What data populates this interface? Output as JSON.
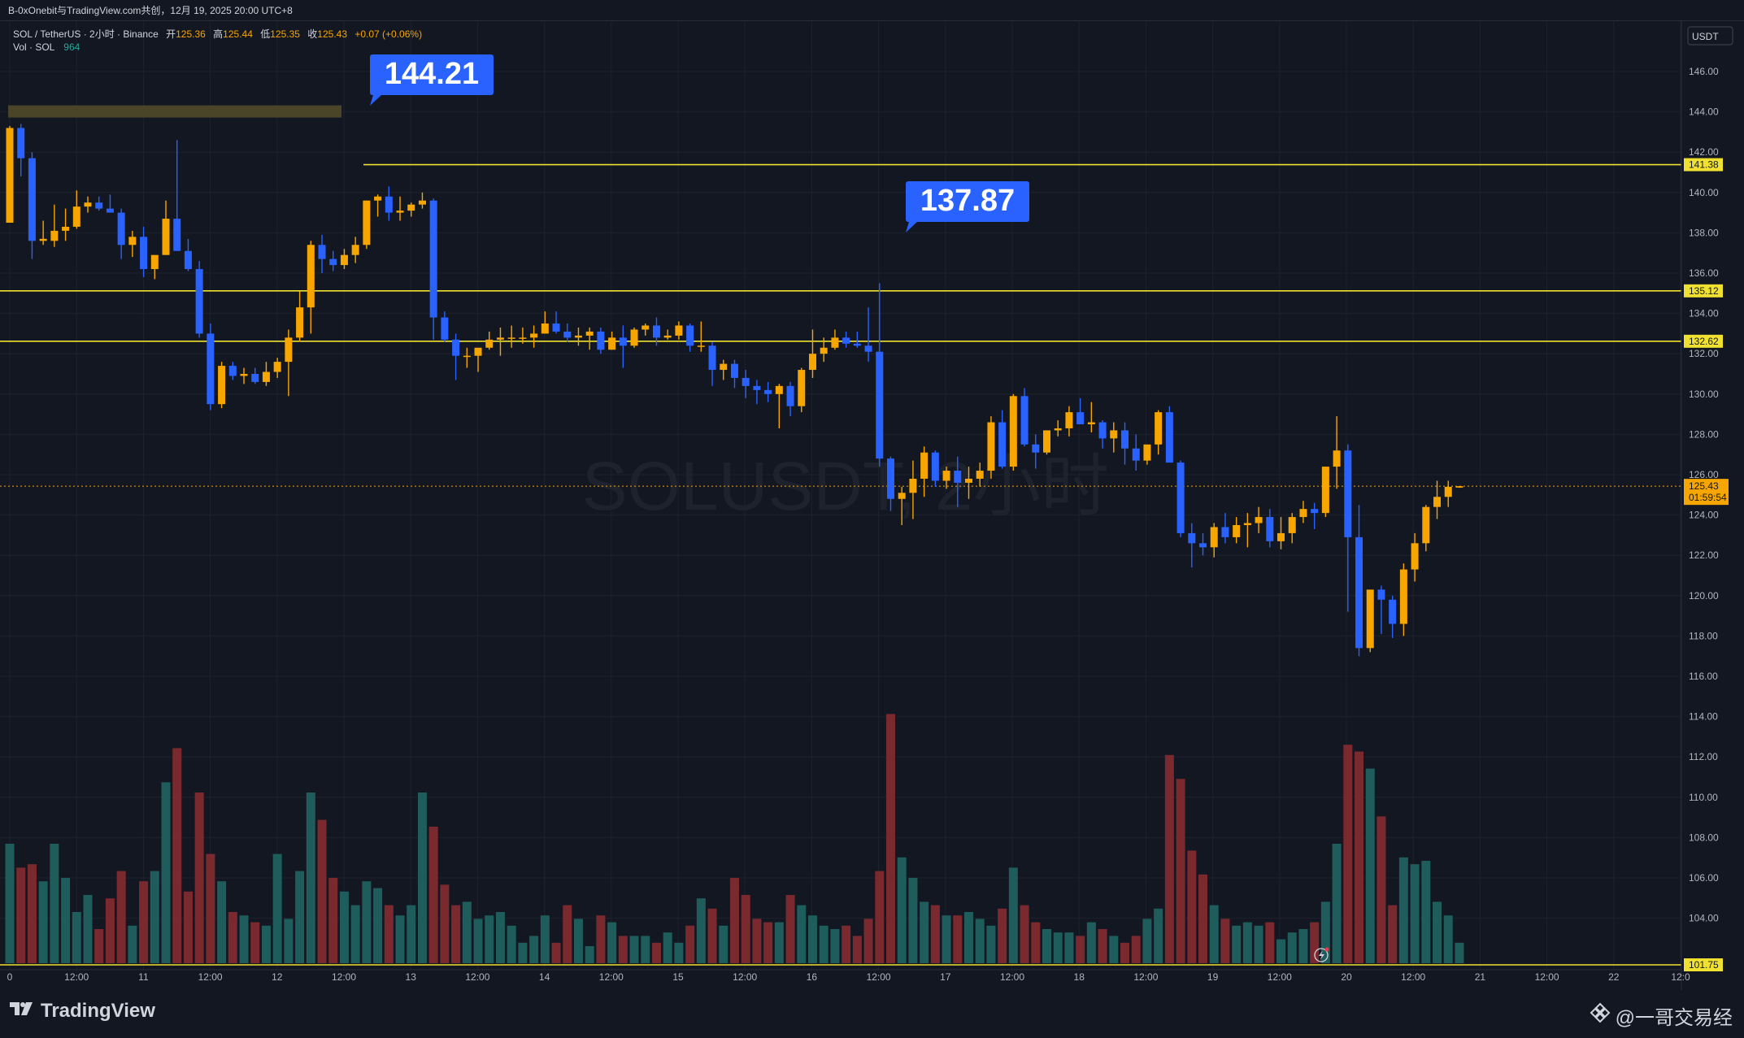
{
  "header": {
    "share_line": "B-0xOnebit与TradingView.com共创，12月 19, 2025 20:00 UTC+8",
    "symbol_line": "SOL / TetherUS · 2小时 · Binance",
    "ohlc": {
      "open_label": "开",
      "open": "125.36",
      "high_label": "高",
      "high": "125.44",
      "low_label": "低",
      "low": "125.35",
      "close_label": "收",
      "close": "125.43",
      "change": "+0.07 (+0.06%)"
    },
    "vol_label": "Vol · SOL",
    "vol_value": "964"
  },
  "currency_button": "USDT",
  "watermark": "SOLUSDT, 2小时",
  "footer": {
    "brand": "TradingView",
    "author": "@一哥交易经"
  },
  "colors": {
    "up": "#f7a600",
    "down": "#2962ff",
    "up_vol": "#1f5c5c",
    "down_vol": "#7a2a2e",
    "level": "#f0e130",
    "bg": "#131722",
    "grid": "#1e222d",
    "callout": "#2962ff"
  },
  "chart_data": {
    "type": "candlestick",
    "interval": "2h",
    "ylim": [
      101.75,
      147.6
    ],
    "y_ticks": [
      "146.00",
      "144.00",
      "142.00",
      "140.00",
      "138.00",
      "136.00",
      "134.00",
      "132.00",
      "130.00",
      "128.00",
      "126.00",
      "124.00",
      "122.00",
      "120.00",
      "118.00",
      "116.00",
      "114.00",
      "112.00",
      "110.00",
      "108.00",
      "106.00",
      "104.00"
    ],
    "x_ticks": [
      "0",
      "12:00",
      "11",
      "12:00",
      "12",
      "12:00",
      "13",
      "12:00",
      "14",
      "12:00",
      "15",
      "12:00",
      "16",
      "12:00",
      "17",
      "12:00",
      "18",
      "12:00",
      "19",
      "12:00",
      "20",
      "12:00",
      "21",
      "12:00",
      "22",
      "12:0"
    ],
    "price_labels": {
      "level_1": "141.38",
      "level_2": "135.12",
      "level_3": "132.62",
      "last_price": "125.43",
      "countdown": "01:59:54",
      "bottom": "101.75"
    },
    "horizontal_levels": [
      141.38,
      135.12,
      132.62
    ],
    "callouts": [
      {
        "text": "144.21",
        "value": 144.21
      },
      {
        "text": "137.87",
        "value": 137.87
      }
    ],
    "candles": [
      [
        138.5,
        143.3,
        138.5,
        143.2,
        35
      ],
      [
        143.2,
        143.4,
        140.8,
        141.7,
        28
      ],
      [
        141.7,
        142.0,
        136.7,
        137.6,
        29
      ],
      [
        137.6,
        138.6,
        137.4,
        137.7,
        24
      ],
      [
        137.6,
        139.4,
        137.3,
        138.1,
        35
      ],
      [
        138.1,
        139.2,
        137.6,
        138.3,
        25
      ],
      [
        138.3,
        140.1,
        138.2,
        139.3,
        15
      ],
      [
        139.3,
        139.8,
        139.0,
        139.5,
        20
      ],
      [
        139.5,
        139.8,
        139.1,
        139.2,
        10
      ],
      [
        139.2,
        139.9,
        139.0,
        139.0,
        19
      ],
      [
        139.0,
        139.2,
        136.7,
        137.4,
        27
      ],
      [
        137.4,
        138.1,
        136.8,
        137.8,
        11
      ],
      [
        137.8,
        138.3,
        135.8,
        136.2,
        24
      ],
      [
        136.2,
        136.8,
        135.7,
        136.9,
        27
      ],
      [
        136.9,
        139.6,
        136.9,
        138.7,
        53
      ],
      [
        138.7,
        142.6,
        137.1,
        137.1,
        63
      ],
      [
        137.1,
        137.7,
        136.1,
        136.2,
        21
      ],
      [
        136.2,
        136.6,
        132.8,
        133.0,
        50
      ],
      [
        133.0,
        133.5,
        129.2,
        129.5,
        32
      ],
      [
        129.5,
        131.6,
        129.3,
        131.4,
        24
      ],
      [
        131.4,
        131.6,
        130.7,
        130.9,
        15
      ],
      [
        130.9,
        131.3,
        130.5,
        131.0,
        14
      ],
      [
        131.0,
        131.3,
        130.5,
        130.6,
        12
      ],
      [
        130.6,
        131.6,
        130.4,
        131.1,
        11
      ],
      [
        131.1,
        131.8,
        130.8,
        131.6,
        32
      ],
      [
        131.6,
        133.2,
        129.9,
        132.8,
        13
      ],
      [
        132.8,
        135.1,
        132.6,
        134.3,
        27
      ],
      [
        134.3,
        137.6,
        133.0,
        137.4,
        50
      ],
      [
        137.4,
        137.9,
        136.0,
        136.7,
        42
      ],
      [
        136.7,
        137.1,
        136.1,
        136.4,
        25
      ],
      [
        136.4,
        137.2,
        136.2,
        136.9,
        21
      ],
      [
        136.9,
        137.8,
        136.5,
        137.4,
        17
      ],
      [
        137.4,
        139.6,
        137.2,
        139.6,
        24
      ],
      [
        139.6,
        139.9,
        138.8,
        139.8,
        22
      ],
      [
        139.8,
        140.3,
        138.6,
        139.0,
        17
      ],
      [
        139.0,
        139.8,
        138.6,
        139.1,
        14
      ],
      [
        139.1,
        139.5,
        138.8,
        139.4,
        17
      ],
      [
        139.4,
        140.0,
        139.2,
        139.6,
        50
      ],
      [
        139.6,
        139.7,
        132.7,
        133.8,
        40
      ],
      [
        133.8,
        134.1,
        132.6,
        132.7,
        23
      ],
      [
        132.7,
        133.0,
        130.7,
        131.9,
        17
      ],
      [
        131.9,
        132.3,
        131.3,
        131.9,
        18
      ],
      [
        131.9,
        132.2,
        131.1,
        132.3,
        13
      ],
      [
        132.3,
        133.1,
        132.2,
        132.7,
        14
      ],
      [
        132.7,
        133.3,
        131.9,
        132.8,
        15
      ],
      [
        132.8,
        133.4,
        132.3,
        132.8,
        11
      ],
      [
        132.8,
        133.3,
        132.5,
        132.8,
        6
      ],
      [
        132.8,
        133.4,
        132.3,
        133.0,
        8
      ],
      [
        133.0,
        134.1,
        133.0,
        133.5,
        14
      ],
      [
        133.5,
        134.1,
        133.0,
        133.1,
        6
      ],
      [
        133.1,
        133.5,
        132.6,
        132.8,
        17
      ],
      [
        132.8,
        133.3,
        132.4,
        132.9,
        13
      ],
      [
        132.9,
        133.3,
        132.2,
        133.1,
        5
      ],
      [
        133.1,
        133.3,
        132.0,
        132.2,
        14
      ],
      [
        132.2,
        133.1,
        132.2,
        132.8,
        12
      ],
      [
        132.8,
        133.4,
        131.3,
        132.4,
        8
      ],
      [
        132.4,
        133.3,
        132.3,
        133.2,
        8
      ],
      [
        133.2,
        133.5,
        132.9,
        133.4,
        8
      ],
      [
        133.4,
        133.8,
        132.4,
        132.8,
        6
      ],
      [
        132.8,
        133.2,
        132.7,
        132.9,
        9
      ],
      [
        132.9,
        133.6,
        132.7,
        133.4,
        6
      ],
      [
        133.4,
        133.5,
        132.1,
        132.4,
        11
      ],
      [
        132.4,
        133.6,
        132.1,
        132.4,
        19
      ],
      [
        132.4,
        132.6,
        130.4,
        131.2,
        16
      ],
      [
        131.2,
        131.7,
        130.7,
        131.5,
        11
      ],
      [
        131.5,
        131.7,
        130.3,
        130.8,
        25
      ],
      [
        130.8,
        131.2,
        129.8,
        130.4,
        20
      ],
      [
        130.4,
        130.7,
        129.5,
        130.2,
        13
      ],
      [
        130.2,
        130.6,
        129.6,
        130.0,
        12
      ],
      [
        130.0,
        130.5,
        128.3,
        130.4,
        12
      ],
      [
        130.4,
        130.6,
        128.9,
        129.4,
        20
      ],
      [
        129.4,
        131.3,
        129.1,
        131.2,
        17
      ],
      [
        131.2,
        133.2,
        130.8,
        132.0,
        14
      ],
      [
        132.0,
        132.8,
        131.6,
        132.3,
        11
      ],
      [
        132.3,
        133.2,
        132.2,
        132.8,
        10
      ],
      [
        132.8,
        133.1,
        132.3,
        132.5,
        11
      ],
      [
        132.5,
        133.1,
        132.3,
        132.4,
        8
      ],
      [
        132.4,
        134.3,
        131.6,
        132.1,
        13
      ],
      [
        132.1,
        135.5,
        126.4,
        126.8,
        27
      ],
      [
        126.8,
        126.9,
        124.2,
        124.8,
        73
      ],
      [
        124.8,
        125.4,
        123.5,
        125.1,
        31
      ],
      [
        125.1,
        126.7,
        123.8,
        125.8,
        25
      ],
      [
        125.8,
        127.4,
        124.9,
        127.1,
        18
      ],
      [
        127.1,
        127.2,
        125.4,
        125.7,
        17
      ],
      [
        125.7,
        126.4,
        125.3,
        126.2,
        14
      ],
      [
        126.2,
        126.9,
        124.4,
        125.6,
        14
      ],
      [
        125.6,
        126.4,
        124.8,
        125.8,
        15
      ],
      [
        125.8,
        126.6,
        125.4,
        126.2,
        13
      ],
      [
        126.2,
        128.9,
        125.8,
        128.6,
        11
      ],
      [
        128.6,
        129.2,
        126.3,
        126.4,
        16
      ],
      [
        126.4,
        130.0,
        126.2,
        129.9,
        28
      ],
      [
        129.9,
        130.3,
        127.4,
        127.5,
        17
      ],
      [
        127.5,
        128.0,
        126.3,
        127.1,
        12
      ],
      [
        127.1,
        128.2,
        127.0,
        128.2,
        10
      ],
      [
        128.2,
        128.7,
        127.9,
        128.3,
        9
      ],
      [
        128.3,
        129.4,
        127.9,
        129.1,
        9
      ],
      [
        129.1,
        129.8,
        128.8,
        128.5,
        8
      ],
      [
        128.5,
        129.6,
        128.1,
        128.6,
        12
      ],
      [
        128.6,
        128.7,
        127.3,
        127.8,
        10
      ],
      [
        127.8,
        128.6,
        127.1,
        128.2,
        8
      ],
      [
        128.2,
        128.6,
        126.5,
        127.3,
        6
      ],
      [
        127.3,
        128.0,
        126.2,
        126.7,
        8
      ],
      [
        126.7,
        127.1,
        126.5,
        127.5,
        13
      ],
      [
        127.5,
        129.2,
        127.0,
        129.1,
        16
      ],
      [
        129.1,
        129.4,
        126.6,
        126.6,
        61
      ],
      [
        126.6,
        126.7,
        122.9,
        123.1,
        54
      ],
      [
        123.1,
        123.6,
        121.4,
        122.6,
        33
      ],
      [
        122.6,
        123.1,
        122.0,
        122.4,
        26
      ],
      [
        122.4,
        123.6,
        121.9,
        123.4,
        17
      ],
      [
        123.4,
        124.1,
        122.6,
        122.9,
        13
      ],
      [
        122.9,
        123.9,
        122.6,
        123.5,
        11
      ],
      [
        123.5,
        124.1,
        122.4,
        123.6,
        12
      ],
      [
        123.6,
        124.4,
        123.1,
        123.9,
        11
      ],
      [
        123.9,
        124.3,
        122.4,
        122.7,
        12
      ],
      [
        122.7,
        123.9,
        122.3,
        123.1,
        7
      ],
      [
        123.1,
        124.1,
        122.6,
        123.9,
        9
      ],
      [
        123.9,
        124.7,
        123.6,
        124.3,
        10
      ],
      [
        124.3,
        124.6,
        123.3,
        124.1,
        12
      ],
      [
        124.1,
        126.4,
        123.9,
        126.4,
        18
      ],
      [
        126.4,
        128.9,
        125.3,
        127.2,
        35
      ],
      [
        127.2,
        127.5,
        119.2,
        122.9,
        64
      ],
      [
        122.9,
        124.5,
        117.0,
        117.4,
        62
      ],
      [
        117.4,
        120.1,
        117.2,
        120.3,
        57
      ],
      [
        120.3,
        120.5,
        118.1,
        119.8,
        43
      ],
      [
        119.8,
        120.0,
        117.9,
        118.6,
        17
      ],
      [
        118.6,
        121.6,
        118.0,
        121.3,
        31
      ],
      [
        121.3,
        123.1,
        120.7,
        122.6,
        29
      ],
      [
        122.6,
        124.5,
        122.2,
        124.4,
        30
      ],
      [
        124.4,
        125.7,
        123.8,
        124.9,
        18
      ],
      [
        124.9,
        125.7,
        124.4,
        125.4,
        14
      ],
      [
        125.36,
        125.44,
        125.35,
        125.43,
        6
      ]
    ]
  }
}
